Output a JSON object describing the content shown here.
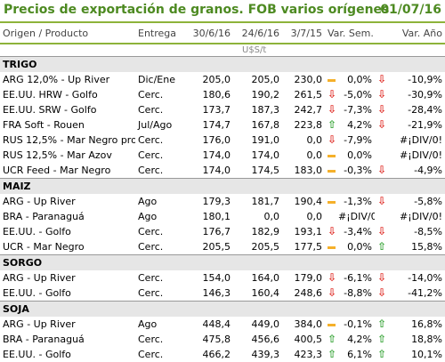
{
  "title": "Precios de exportación de granos. FOB varios orígenes",
  "date": "01/07/16",
  "headers": {
    "origin": "Origen / Producto",
    "delivery": "Entrega",
    "d1": "30/6/16",
    "d2": "24/6/16",
    "d3": "3/7/15",
    "var_sem": "Var. Sem.",
    "var_ano": "Var. Año"
  },
  "unit": "U$S/t",
  "sections": [
    {
      "name": "TRIGO",
      "rows": [
        {
          "origin": "ARG 12,0% - Up River",
          "delivery": "Dic/Ene",
          "d1": "205,0",
          "d2": "205,0",
          "d3": "230,0",
          "ind": "dash",
          "vs": "0,0%",
          "ai": "down",
          "va": "-10,9%"
        },
        {
          "origin": "EE.UU. HRW - Golfo",
          "delivery": "Cerc.",
          "d1": "180,6",
          "d2": "190,2",
          "d3": "261,5",
          "ind": "down",
          "vs": "-5,0%",
          "ai": "down",
          "va": "-30,9%"
        },
        {
          "origin": "EE.UU. SRW - Golfo",
          "delivery": "Cerc.",
          "d1": "173,7",
          "d2": "187,3",
          "d3": "242,7",
          "ind": "down",
          "vs": "-7,3%",
          "ai": "down",
          "va": "-28,4%"
        },
        {
          "origin": "FRA Soft - Rouen",
          "delivery": "Jul/Ago",
          "d1": "174,7",
          "d2": "167,8",
          "d3": "223,8",
          "ind": "up",
          "vs": "4,2%",
          "ai": "down",
          "va": "-21,9%"
        },
        {
          "origin": "RUS 12,5% - Mar Negro prof.",
          "delivery": "Cerc.",
          "d1": "176,0",
          "d2": "191,0",
          "d3": "0,0",
          "ind": "down",
          "vs": "-7,9%",
          "ai": "",
          "va": "#¡DIV/0!"
        },
        {
          "origin": "RUS 12,5% - Mar Azov",
          "delivery": "Cerc.",
          "d1": "174,0",
          "d2": "174,0",
          "d3": "0,0",
          "ind": "dash",
          "vs": "0,0%",
          "ai": "",
          "va": "#¡DIV/0!"
        },
        {
          "origin": "UCR Feed - Mar Negro",
          "delivery": "Cerc.",
          "d1": "174,0",
          "d2": "174,5",
          "d3": "183,0",
          "ind": "dash",
          "vs": "-0,3%",
          "ai": "down",
          "va": "-4,9%"
        }
      ]
    },
    {
      "name": "MAIZ",
      "rows": [
        {
          "origin": "ARG - Up River",
          "delivery": "Ago",
          "d1": "179,3",
          "d2": "181,7",
          "d3": "190,4",
          "ind": "dash",
          "vs": "-1,3%",
          "ai": "down",
          "va": "-5,8%"
        },
        {
          "origin": "BRA - Paranaguá",
          "delivery": "Ago",
          "d1": "180,1",
          "d2": "0,0",
          "d3": "0,0",
          "ind": "",
          "vs": "#¡DIV/0!",
          "ai": "",
          "va": "#¡DIV/0!"
        },
        {
          "origin": "EE.UU. - Golfo",
          "delivery": "Cerc.",
          "d1": "176,7",
          "d2": "182,9",
          "d3": "193,1",
          "ind": "down",
          "vs": "-3,4%",
          "ai": "down",
          "va": "-8,5%"
        },
        {
          "origin": "UCR - Mar Negro",
          "delivery": "Cerc.",
          "d1": "205,5",
          "d2": "205,5",
          "d3": "177,5",
          "ind": "dash",
          "vs": "0,0%",
          "ai": "up",
          "va": "15,8%"
        }
      ]
    },
    {
      "name": "SORGO",
      "rows": [
        {
          "origin": "ARG - Up River",
          "delivery": "Cerc.",
          "d1": "154,0",
          "d2": "164,0",
          "d3": "179,0",
          "ind": "down",
          "vs": "-6,1%",
          "ai": "down",
          "va": "-14,0%"
        },
        {
          "origin": "EE.UU. - Golfo",
          "delivery": "Cerc.",
          "d1": "146,3",
          "d2": "160,4",
          "d3": "248,6",
          "ind": "down",
          "vs": "-8,8%",
          "ai": "down",
          "va": "-41,2%"
        }
      ]
    },
    {
      "name": "SOJA",
      "rows": [
        {
          "origin": "ARG - Up River",
          "delivery": "Ago",
          "d1": "448,4",
          "d2": "449,0",
          "d3": "384,0",
          "ind": "dash",
          "vs": "-0,1%",
          "ai": "up",
          "va": "16,8%"
        },
        {
          "origin": "BRA - Paranaguá",
          "delivery": "Cerc.",
          "d1": "475,8",
          "d2": "456,6",
          "d3": "400,5",
          "ind": "up",
          "vs": "4,2%",
          "ai": "up",
          "va": "18,8%"
        },
        {
          "origin": "EE.UU. - Golfo",
          "delivery": "Cerc.",
          "d1": "466,2",
          "d2": "439,3",
          "d3": "423,3",
          "ind": "up",
          "vs": "6,1%",
          "ai": "up",
          "va": "10,1%"
        }
      ]
    }
  ],
  "colors": {
    "accent": "#4d8a21",
    "up": "#3aa63a",
    "down": "#e0322c",
    "flat": "#f5b02a"
  }
}
